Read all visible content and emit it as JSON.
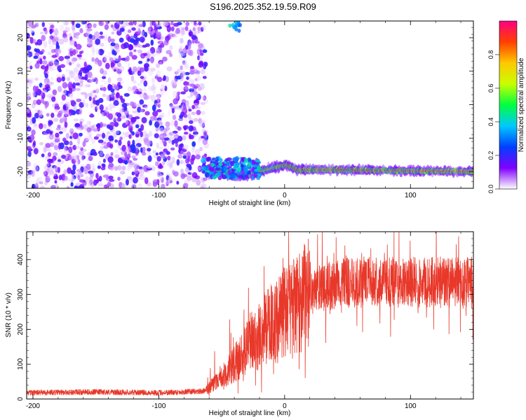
{
  "figure": {
    "title": "S196.2025.352.19.59.R09"
  },
  "chart_data": [
    {
      "type": "heatmap",
      "title": "",
      "xlabel": "Height of straight line (km)",
      "ylabel": "Frequency (Hz)",
      "xlim": [
        -205,
        150
      ],
      "ylim": [
        -25,
        25
      ],
      "xticks": [
        -200,
        -100,
        0,
        100
      ],
      "yticks": [
        -20,
        -10,
        0,
        10,
        20
      ],
      "grid": false,
      "colorbar": {
        "label": "Normalized spectral amplitude",
        "range": [
          0.0,
          1.0
        ],
        "ticks": [
          "0.0",
          "0.2",
          "0.4",
          "0.6",
          "0.8"
        ],
        "colormap": [
          "#ffffff",
          "#8000ff",
          "#0040ff",
          "#00c8ff",
          "#00ff40",
          "#c8ff00",
          "#ffc800",
          "#ff4000",
          "#ff0080"
        ]
      },
      "regions": [
        {
          "desc": "noise",
          "x": [
            -205,
            -62
          ],
          "freq": [
            -25,
            25
          ],
          "amplitude_max": 0.2
        },
        {
          "desc": "signal",
          "x": [
            -62,
            150
          ],
          "freq_center": -20,
          "amplitude_max": 1.0
        }
      ],
      "signal_trace": {
        "x": [
          -65,
          -50,
          -40,
          -30,
          -20,
          -10,
          0,
          5,
          10,
          20,
          50,
          100,
          150
        ],
        "freq": [
          -20,
          -20,
          -21,
          -21,
          -20,
          -19,
          -18,
          -18.5,
          -19.5,
          -19.5,
          -19.5,
          -19.8,
          -20
        ]
      }
    },
    {
      "type": "line",
      "title": "",
      "xlabel": "Height of straight line (km)",
      "ylabel": "SNR (10 * v/v)",
      "xlim": [
        -205,
        150
      ],
      "ylim": [
        0,
        480
      ],
      "xticks": [
        -200,
        -100,
        0,
        100
      ],
      "yticks": [
        0,
        100,
        200,
        300,
        400
      ],
      "grid": false,
      "line_color": "#e8382a",
      "series": [
        {
          "x": [
            -205,
            -150,
            -100,
            -65,
            -55,
            -45,
            -35,
            -25,
            -15,
            -5,
            0,
            10,
            20,
            30,
            50,
            100,
            150
          ],
          "values": [
            18,
            20,
            18,
            22,
            45,
            80,
            120,
            170,
            200,
            230,
            245,
            270,
            300,
            320,
            335,
            335,
            335
          ]
        }
      ]
    }
  ]
}
